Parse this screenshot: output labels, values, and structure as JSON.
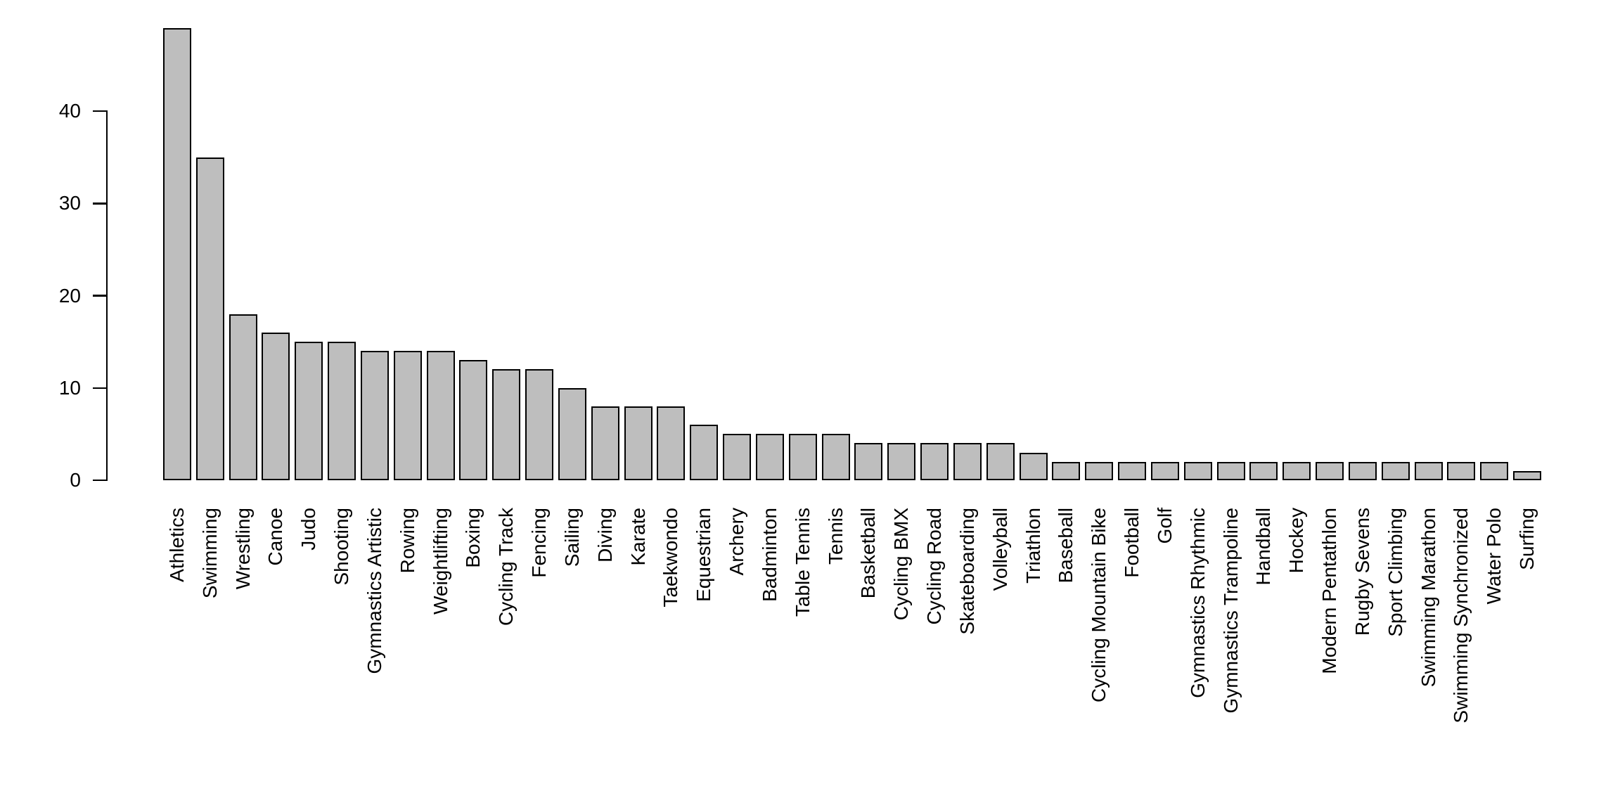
{
  "chart_data": {
    "type": "bar",
    "title": "",
    "xlabel": "",
    "ylabel": "",
    "categories": [
      "Athletics",
      "Swimming",
      "Wrestling",
      "Canoe",
      "Judo",
      "Shooting",
      "Gymnastics Artistic",
      "Rowing",
      "Weightlifting",
      "Boxing",
      "Cycling Track",
      "Fencing",
      "Sailing",
      "Diving",
      "Karate",
      "Taekwondo",
      "Equestrian",
      "Archery",
      "Badminton",
      "Table Tennis",
      "Tennis",
      "Basketball",
      "Cycling BMX",
      "Cycling Road",
      "Skateboarding",
      "Volleyball",
      "Triathlon",
      "Baseball",
      "Cycling Mountain Bike",
      "Football",
      "Golf",
      "Gymnastics Rhythmic",
      "Gymnastics Trampoline",
      "Handball",
      "Hockey",
      "Modern Pentathlon",
      "Rugby Sevens",
      "Sport Climbing",
      "Swimming Marathon",
      "Swimming Synchronized",
      "Water Polo",
      "Surfing"
    ],
    "values": [
      49,
      35,
      18,
      16,
      15,
      15,
      14,
      14,
      14,
      13,
      12,
      12,
      10,
      8,
      8,
      8,
      6,
      5,
      5,
      5,
      5,
      4,
      4,
      4,
      4,
      4,
      3,
      2,
      2,
      2,
      2,
      2,
      2,
      2,
      2,
      2,
      2,
      2,
      2,
      2,
      2,
      1
    ],
    "yticks": [
      0,
      10,
      20,
      30,
      40
    ],
    "ylim": [
      0,
      49
    ],
    "grid": false,
    "legend_position": "none",
    "x_tick_label_rotation_deg": 90,
    "bar_fill_color": "#bebebe",
    "bar_border_color": "#000000",
    "axis_color": "#000000",
    "text_color": "#000000",
    "background_color": "#ffffff"
  }
}
